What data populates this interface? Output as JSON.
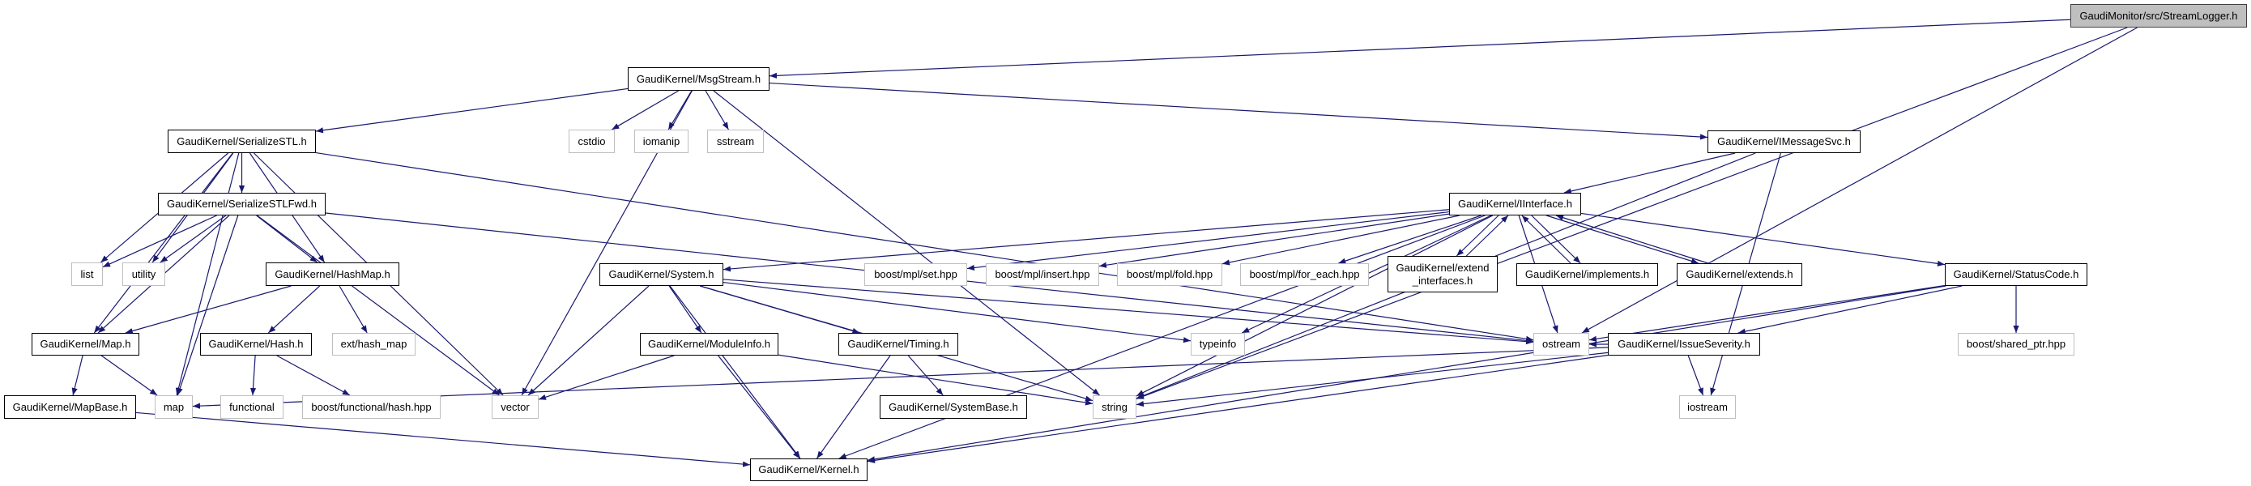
{
  "graph": {
    "edge_color": "#191970",
    "nodes": [
      {
        "id": "streamlogger",
        "label": "GaudiMonitor/src/StreamLogger.h",
        "kind": "root"
      },
      {
        "id": "msgstream",
        "label": "GaudiKernel/MsgStream.h",
        "kind": "project"
      },
      {
        "id": "serializestl",
        "label": "GaudiKernel/SerializeSTL.h",
        "kind": "project"
      },
      {
        "id": "cstdio",
        "label": "cstdio",
        "kind": "system"
      },
      {
        "id": "iomanip",
        "label": "iomanip",
        "kind": "system"
      },
      {
        "id": "sstream",
        "label": "sstream",
        "kind": "system"
      },
      {
        "id": "imessagesvc",
        "label": "GaudiKernel/IMessageSvc.h",
        "kind": "project"
      },
      {
        "id": "serializestlfwd",
        "label": "GaudiKernel/SerializeSTLFwd.h",
        "kind": "project"
      },
      {
        "id": "iinterface",
        "label": "GaudiKernel/IInterface.h",
        "kind": "project"
      },
      {
        "id": "list",
        "label": "list",
        "kind": "system"
      },
      {
        "id": "utility",
        "label": "utility",
        "kind": "system"
      },
      {
        "id": "hashmap",
        "label": "GaudiKernel/HashMap.h",
        "kind": "project"
      },
      {
        "id": "system",
        "label": "GaudiKernel/System.h",
        "kind": "project"
      },
      {
        "id": "mplset",
        "label": "boost/mpl/set.hpp",
        "kind": "system"
      },
      {
        "id": "mplinsert",
        "label": "boost/mpl/insert.hpp",
        "kind": "system"
      },
      {
        "id": "mplfold",
        "label": "boost/mpl/fold.hpp",
        "kind": "system"
      },
      {
        "id": "mplforeach",
        "label": "boost/mpl/for_each.hpp",
        "kind": "system"
      },
      {
        "id": "extendinterfaces",
        "label": "GaudiKernel/extend\n_interfaces.h",
        "kind": "project"
      },
      {
        "id": "implements",
        "label": "GaudiKernel/implements.h",
        "kind": "project"
      },
      {
        "id": "extends",
        "label": "GaudiKernel/extends.h",
        "kind": "project"
      },
      {
        "id": "statuscode",
        "label": "GaudiKernel/StatusCode.h",
        "kind": "project"
      },
      {
        "id": "map_h",
        "label": "GaudiKernel/Map.h",
        "kind": "project"
      },
      {
        "id": "hash",
        "label": "GaudiKernel/Hash.h",
        "kind": "project"
      },
      {
        "id": "exthashmap",
        "label": "ext/hash_map",
        "kind": "system"
      },
      {
        "id": "moduleinfo",
        "label": "GaudiKernel/ModuleInfo.h",
        "kind": "project"
      },
      {
        "id": "timing",
        "label": "GaudiKernel/Timing.h",
        "kind": "project"
      },
      {
        "id": "typeinfo",
        "label": "typeinfo",
        "kind": "system"
      },
      {
        "id": "ostream",
        "label": "ostream",
        "kind": "system"
      },
      {
        "id": "issueseverity",
        "label": "GaudiKernel/IssueSeverity.h",
        "kind": "project"
      },
      {
        "id": "sharedptr",
        "label": "boost/shared_ptr.hpp",
        "kind": "system"
      },
      {
        "id": "mapbase",
        "label": "GaudiKernel/MapBase.h",
        "kind": "project"
      },
      {
        "id": "map",
        "label": "map",
        "kind": "system"
      },
      {
        "id": "functional",
        "label": "functional",
        "kind": "system"
      },
      {
        "id": "functionalhash",
        "label": "boost/functional/hash.hpp",
        "kind": "system"
      },
      {
        "id": "vector",
        "label": "vector",
        "kind": "system"
      },
      {
        "id": "systembase",
        "label": "GaudiKernel/SystemBase.h",
        "kind": "project"
      },
      {
        "id": "string",
        "label": "string",
        "kind": "system"
      },
      {
        "id": "iostream",
        "label": "iostream",
        "kind": "system"
      },
      {
        "id": "kernel",
        "label": "GaudiKernel/Kernel.h",
        "kind": "project"
      }
    ],
    "edges": [
      [
        "streamlogger",
        "msgstream"
      ],
      [
        "streamlogger",
        "ostream"
      ],
      [
        "streamlogger",
        "string"
      ],
      [
        "msgstream",
        "serializestl"
      ],
      [
        "msgstream",
        "vector"
      ],
      [
        "msgstream",
        "cstdio"
      ],
      [
        "msgstream",
        "iomanip"
      ],
      [
        "msgstream",
        "sstream"
      ],
      [
        "msgstream",
        "string"
      ],
      [
        "msgstream",
        "imessagesvc"
      ],
      [
        "serializestl",
        "serializestlfwd"
      ],
      [
        "serializestl",
        "list"
      ],
      [
        "serializestl",
        "utility"
      ],
      [
        "serializestl",
        "hashmap"
      ],
      [
        "serializestl",
        "map_h"
      ],
      [
        "serializestl",
        "map"
      ],
      [
        "serializestl",
        "vector"
      ],
      [
        "serializestl",
        "ostream"
      ],
      [
        "serializestlfwd",
        "list"
      ],
      [
        "serializestlfwd",
        "utility"
      ],
      [
        "serializestlfwd",
        "hashmap"
      ],
      [
        "serializestlfwd",
        "map_h"
      ],
      [
        "serializestlfwd",
        "map"
      ],
      [
        "serializestlfwd",
        "vector"
      ],
      [
        "serializestlfwd",
        "ostream"
      ],
      [
        "hashmap",
        "map_h"
      ],
      [
        "hashmap",
        "hash"
      ],
      [
        "hashmap",
        "exthashmap"
      ],
      [
        "map_h",
        "map"
      ],
      [
        "map_h",
        "mapbase"
      ],
      [
        "hash",
        "functional"
      ],
      [
        "hash",
        "functionalhash"
      ],
      [
        "mapbase",
        "kernel"
      ],
      [
        "imessagesvc",
        "iinterface"
      ],
      [
        "imessagesvc",
        "string"
      ],
      [
        "imessagesvc",
        "iostream"
      ],
      [
        "iinterface",
        "system"
      ],
      [
        "iinterface",
        "mplset"
      ],
      [
        "iinterface",
        "mplinsert"
      ],
      [
        "iinterface",
        "mplfold"
      ],
      [
        "iinterface",
        "mplforeach"
      ],
      [
        "iinterface",
        "extendinterfaces"
      ],
      [
        "iinterface",
        "implements"
      ],
      [
        "iinterface",
        "extends"
      ],
      [
        "iinterface",
        "statuscode"
      ],
      [
        "iinterface",
        "ostream"
      ],
      [
        "iinterface",
        "typeinfo"
      ],
      [
        "iinterface",
        "string"
      ],
      [
        "iinterface",
        "kernel"
      ],
      [
        "extendinterfaces",
        "iinterface"
      ],
      [
        "implements",
        "iinterface"
      ],
      [
        "extends",
        "iinterface"
      ],
      [
        "system",
        "vector"
      ],
      [
        "system",
        "moduleinfo"
      ],
      [
        "system",
        "timing"
      ],
      [
        "system",
        "typeinfo"
      ],
      [
        "system",
        "string"
      ],
      [
        "system",
        "kernel"
      ],
      [
        "system",
        "ostream"
      ],
      [
        "moduleinfo",
        "vector"
      ],
      [
        "moduleinfo",
        "string"
      ],
      [
        "moduleinfo",
        "kernel"
      ],
      [
        "timing",
        "systembase"
      ],
      [
        "timing",
        "kernel"
      ],
      [
        "statuscode",
        "ostream"
      ],
      [
        "statuscode",
        "issueseverity"
      ],
      [
        "statuscode",
        "sharedptr"
      ],
      [
        "statuscode",
        "kernel"
      ],
      [
        "issueseverity",
        "map"
      ],
      [
        "issueseverity",
        "string"
      ],
      [
        "issueseverity",
        "iostream"
      ],
      [
        "issueseverity",
        "kernel"
      ],
      [
        "issueseverity",
        "ostream"
      ]
    ]
  }
}
